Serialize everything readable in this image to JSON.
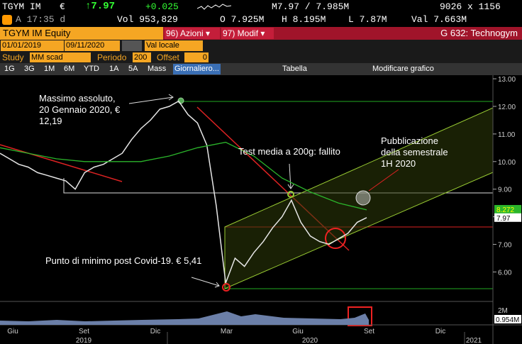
{
  "quote": {
    "ticker": "TGYM IM",
    "currency": "€",
    "last": "↑7.97",
    "change": "+0.025",
    "bid_ask": "M7.97 / 7.985M",
    "size": "9026 x 1156",
    "time": "A 17:35 d",
    "volume": "Vol 953,829",
    "open": "O 7.925M",
    "high": "H 8.195M",
    "low": "L 7.87M",
    "value": "Val 7.663M"
  },
  "titlebar": {
    "security": "TGYM IM Equity",
    "menu1": "96) Azioni ▾",
    "menu2": "97) Modif ▾",
    "function": "G 632: Technogym"
  },
  "range": {
    "start": "01/01/2019",
    "end": "09/11/2020",
    "currency_mode": "Val locale"
  },
  "study": {
    "label": "Study",
    "name": "MM scad",
    "period_label": "Periodo",
    "period": "200",
    "offset_label": "Offset",
    "offset": "0"
  },
  "toolbar": [
    "1G",
    "3G",
    "1M",
    "6M",
    "YTD",
    "1A",
    "5A",
    "Mass",
    "Giornaliero...",
    "Tabella",
    "Modificare grafico"
  ],
  "chart_data": {
    "type": "line",
    "annotations": [
      [
        "Massimo assoluto,",
        "20 Gennaio 2020, €",
        "12,19"
      ],
      [
        "Test media a 200g: fallito"
      ],
      [
        "Pubblicazione",
        "della semestrale",
        "1H 2020"
      ],
      [
        "Punto di minimo post Covid-19. € 5,41"
      ]
    ],
    "ylim": [
      5.06,
      13.13
    ],
    "yticks": [
      {
        "value": 13,
        "label": "13.00"
      },
      {
        "value": 12,
        "label": "12.00"
      },
      {
        "value": 11,
        "label": "11.00"
      },
      {
        "value": 10,
        "label": "10.00"
      },
      {
        "value": 9,
        "label": "9.00"
      },
      {
        "value": 8,
        "label": "8.00"
      },
      {
        "value": 7,
        "label": "7.00"
      },
      {
        "value": 6,
        "label": "6.00"
      }
    ],
    "months": [
      "Giu",
      "Set",
      "Dic",
      "Mar",
      "Giu",
      "Set",
      "Dic"
    ],
    "years": [
      "2019",
      "2020",
      "2021"
    ],
    "series": [
      {
        "color": "#e6e6e6",
        "values": [
          10.3,
          10.1,
          9.9,
          9.8,
          9.6,
          9.5,
          9.4,
          9.3,
          9.0,
          9.6,
          9.8,
          9.9,
          10.1,
          10.3,
          10.8,
          11.2,
          11.5,
          11.9,
          12.0,
          12.19,
          11.7,
          11.4,
          10.6,
          8.4,
          5.6,
          6.5,
          6.2,
          6.7,
          7.1,
          7.6,
          8.0,
          8.6,
          7.8,
          7.3,
          7.1,
          7.0,
          7.2,
          7.4,
          7.8,
          7.97
        ]
      },
      {
        "color": "#2bb52b",
        "values": [
          10.5,
          10.3,
          10.1,
          10.0,
          10.0,
          10.0,
          10.2,
          10.5,
          10.7,
          10.2,
          9.4,
          8.9,
          8.5,
          8.25
        ]
      }
    ],
    "last_price": {
      "value": 7.97,
      "label": "7.97"
    },
    "ma_last": {
      "value": 8.272,
      "label": "8.272"
    },
    "volume_tick": "2M",
    "volume_last": "0.954M"
  }
}
